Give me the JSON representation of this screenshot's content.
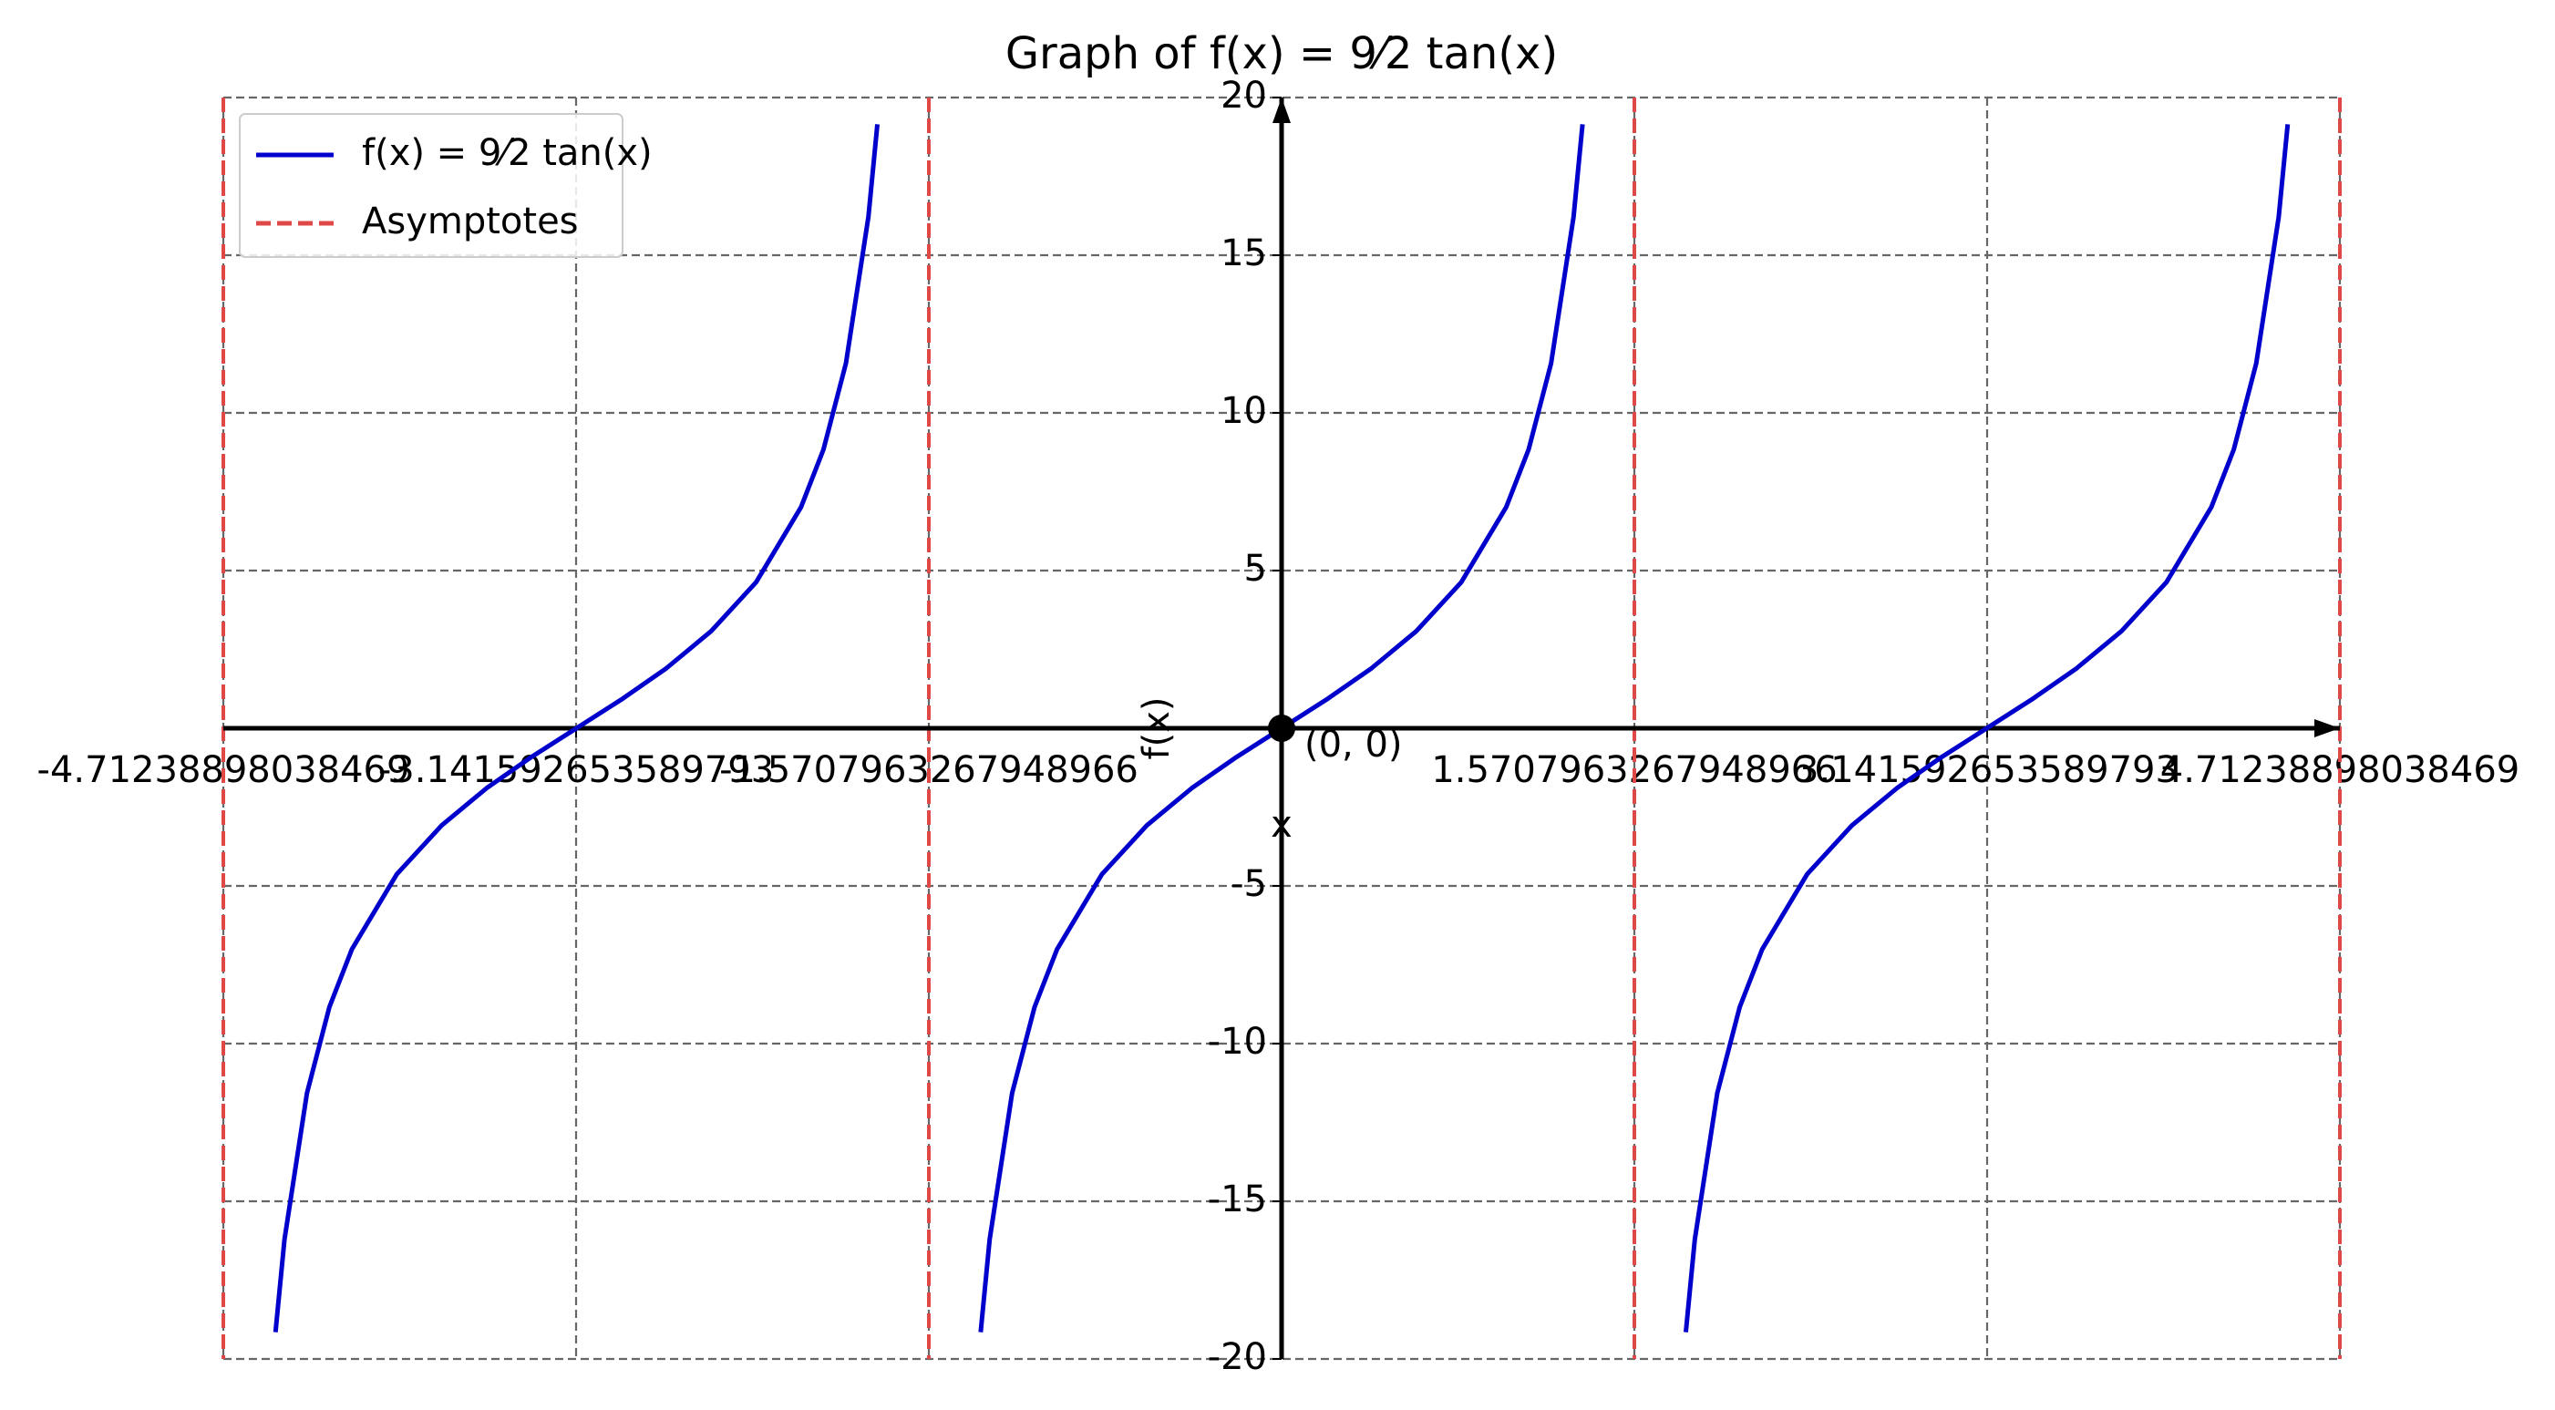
{
  "chart_data": {
    "type": "line",
    "title": "Graph of f(x) = 9⁄2 tan(x)",
    "xlabel": "x",
    "ylabel": "f(x)",
    "x": [
      -4.48,
      -4.44,
      -4.34,
      -4.24,
      -4.14,
      -3.94,
      -3.74,
      -3.54,
      -3.34,
      -3.14,
      -2.94,
      -2.74,
      -2.54,
      -2.34,
      -2.14,
      -2.04,
      -1.94,
      -1.84,
      -1.8,
      -1.57,
      -1.34,
      -1.3,
      -1.2,
      -1.1,
      -1.0,
      -0.8,
      -0.6,
      -0.4,
      -0.2,
      0,
      0.2,
      0.4,
      0.6,
      0.8,
      1.0,
      1.1,
      1.2,
      1.3,
      1.34,
      1.57,
      1.8,
      1.84,
      1.94,
      2.04,
      2.14,
      2.34,
      2.54,
      2.74,
      2.94,
      3.14,
      3.34,
      3.54,
      3.74,
      3.94,
      4.14,
      4.24,
      4.34,
      4.44,
      4.48
    ],
    "series": [
      {
        "name": "f(x) = 9⁄2 tan(x)",
        "color": "#0000cc",
        "values": [
          -19.15,
          -16.21,
          -11.57,
          -8.84,
          -7.01,
          -4.63,
          -3.08,
          -1.9,
          -0.91,
          0,
          0.91,
          1.9,
          3.08,
          4.63,
          7.01,
          8.84,
          11.57,
          16.21,
          19.15,
          null,
          -19.15,
          -16.21,
          -11.57,
          -8.84,
          -7.01,
          -4.63,
          -3.08,
          -1.9,
          -0.91,
          0,
          0.91,
          1.9,
          3.08,
          4.63,
          7.01,
          8.84,
          11.57,
          16.21,
          19.15,
          null,
          -19.15,
          -16.21,
          -11.57,
          -8.84,
          -7.01,
          -4.63,
          -3.08,
          -1.9,
          -0.91,
          0,
          0.91,
          1.9,
          3.08,
          4.63,
          7.01,
          8.84,
          11.57,
          16.21,
          19.15
        ]
      }
    ],
    "asymptotes": {
      "name": "Asymptotes",
      "color": "#e04848",
      "x": [
        -4.71238898038469,
        -1.5707963267948966,
        1.5707963267948966,
        4.71238898038469
      ]
    },
    "annotation": {
      "x": 0,
      "y": 0,
      "text": "(0, 0)"
    },
    "xlim": [
      -4.71238898038469,
      4.71238898038469
    ],
    "ylim": [
      -20,
      20
    ],
    "xticks": [
      -4.71238898038469,
      -3.141592653589793,
      -1.5707963267948966,
      1.5707963267948966,
      3.141592653589793,
      4.71238898038469
    ],
    "yticks": [
      -20,
      -15,
      -10,
      -5,
      5,
      10,
      15,
      20
    ],
    "grid": true,
    "legend": "upper left"
  }
}
